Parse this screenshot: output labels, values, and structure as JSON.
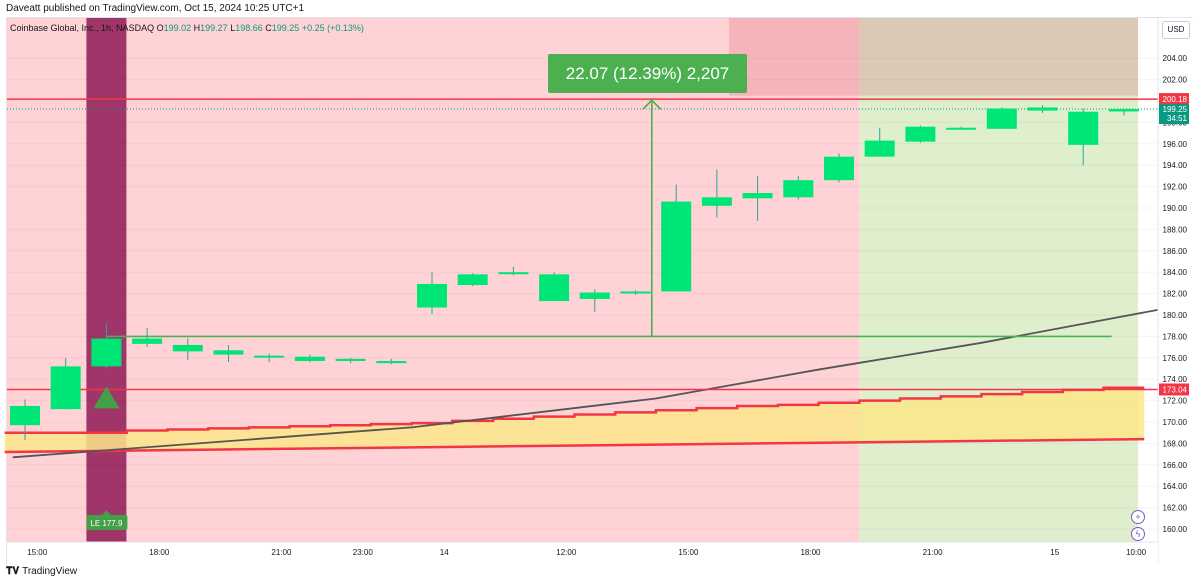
{
  "header": {
    "published_text": "Daveatt published on TradingView.com, Oct 15, 2024 10:25 UTC+1"
  },
  "legend": {
    "symbol_text": "Coinbase Global, Inc., 1h, NASDAQ",
    "open_label": "O",
    "open_value": "199.02",
    "high_label": "H",
    "high_value": "199.27",
    "low_label": "L",
    "low_value": "198.66",
    "close_label": "C",
    "close_value": "199.25",
    "change_value": "+0.25 (+0.13%)"
  },
  "currency_button": "USD",
  "measure_label": "22.07 (12.39%) 2,207",
  "footer": {
    "brand": "TradingView"
  },
  "icons": [
    "tradingview-logo-icon",
    "plus-icon",
    "lightning-icon"
  ],
  "colors": {
    "bull_candle": "#00e676",
    "red_zone": "#ffcdd2",
    "green_zone": "#dcedc8",
    "band_fill": "#fde68a",
    "band_line": "#f23645",
    "measure": "#4caf50",
    "ma_line": "#555555",
    "purple_bar": "#880e4f"
  },
  "chart_data": {
    "type": "candlestick",
    "title": "Coinbase Global, Inc., 1h, NASDAQ",
    "ylim": [
      159,
      206
    ],
    "y_ticks": [
      160,
      162,
      164,
      166,
      168,
      170,
      172,
      174,
      176,
      178,
      180,
      182,
      184,
      186,
      188,
      190,
      192,
      194,
      196,
      198,
      200,
      202,
      204
    ],
    "y_tick_labels": [
      "160.00",
      "162.00",
      "164.00",
      "166.00",
      "168.00",
      "170.00",
      "172.00",
      "174.00",
      "176.00",
      "178.00",
      "180.00",
      "182.00",
      "184.00",
      "186.00",
      "188.00",
      "190.00",
      "192.00",
      "194.00",
      "196.00",
      "198.00",
      "200.00",
      "202.00",
      "204.00"
    ],
    "x_labels": [
      {
        "bar": 0.3,
        "label": "15:00"
      },
      {
        "bar": 3.3,
        "label": "18:00"
      },
      {
        "bar": 6.3,
        "label": "21:00"
      },
      {
        "bar": 8.3,
        "label": "23:00"
      },
      {
        "bar": 10.3,
        "label": "14"
      },
      {
        "bar": 13.3,
        "label": "12:00"
      },
      {
        "bar": 16.3,
        "label": "15:00"
      },
      {
        "bar": 19.3,
        "label": "18:00"
      },
      {
        "bar": 22.3,
        "label": "21:00"
      },
      {
        "bar": 25.3,
        "label": "15"
      },
      {
        "bar": 27.3,
        "label": "10:00"
      }
    ],
    "candles": [
      {
        "o": 169.7,
        "h": 172.1,
        "l": 168.3,
        "c": 171.5
      },
      {
        "o": 171.2,
        "h": 176.0,
        "l": 171.2,
        "c": 175.2
      },
      {
        "o": 175.2,
        "h": 179.2,
        "l": 175.0,
        "c": 177.8
      },
      {
        "o": 177.3,
        "h": 178.8,
        "l": 177.0,
        "c": 177.8
      },
      {
        "o": 177.2,
        "h": 177.8,
        "l": 175.8,
        "c": 176.6
      },
      {
        "o": 176.7,
        "h": 177.2,
        "l": 175.6,
        "c": 176.3
      },
      {
        "o": 176.2,
        "h": 176.4,
        "l": 175.6,
        "c": 176.2
      },
      {
        "o": 175.7,
        "h": 176.3,
        "l": 175.6,
        "c": 176.1
      },
      {
        "o": 175.7,
        "h": 176.0,
        "l": 175.5,
        "c": 175.9
      },
      {
        "o": 175.5,
        "h": 175.9,
        "l": 175.4,
        "c": 175.7
      },
      {
        "o": 180.7,
        "h": 184.0,
        "l": 180.1,
        "c": 182.9
      },
      {
        "o": 182.8,
        "h": 183.9,
        "l": 182.7,
        "c": 183.8
      },
      {
        "o": 183.9,
        "h": 184.5,
        "l": 183.7,
        "c": 184.0
      },
      {
        "o": 181.3,
        "h": 184.0,
        "l": 181.3,
        "c": 183.8
      },
      {
        "o": 181.5,
        "h": 182.4,
        "l": 180.3,
        "c": 182.1
      },
      {
        "o": 182.1,
        "h": 182.3,
        "l": 181.9,
        "c": 182.2
      },
      {
        "o": 182.2,
        "h": 192.2,
        "l": 182.2,
        "c": 190.6
      },
      {
        "o": 190.2,
        "h": 193.6,
        "l": 189.1,
        "c": 191.0
      },
      {
        "o": 190.9,
        "h": 193.0,
        "l": 188.8,
        "c": 191.4
      },
      {
        "o": 191.0,
        "h": 193.0,
        "l": 190.8,
        "c": 192.6
      },
      {
        "o": 192.6,
        "h": 195.1,
        "l": 192.4,
        "c": 194.8
      },
      {
        "o": 194.8,
        "h": 197.5,
        "l": 194.8,
        "c": 196.3
      },
      {
        "o": 196.2,
        "h": 197.7,
        "l": 196.1,
        "c": 197.6
      },
      {
        "o": 197.4,
        "h": 197.6,
        "l": 197.3,
        "c": 197.5
      },
      {
        "o": 197.4,
        "h": 199.4,
        "l": 197.4,
        "c": 199.3
      },
      {
        "o": 199.1,
        "h": 199.6,
        "l": 198.9,
        "c": 199.4
      },
      {
        "o": 195.9,
        "h": 199.3,
        "l": 194.0,
        "c": 199.0
      },
      {
        "o": 199.02,
        "h": 199.27,
        "l": 198.66,
        "c": 199.25
      }
    ],
    "moving_average": [
      {
        "bar": -0.3,
        "v": 166.7
      },
      {
        "bar": 9.5,
        "v": 169.5
      },
      {
        "bar": 15.5,
        "v": 172.2
      },
      {
        "bar": 19.5,
        "v": 174.9
      },
      {
        "bar": 23.5,
        "v": 177.4
      },
      {
        "bar": 28.0,
        "v": 180.6
      }
    ],
    "band_upper": [
      169.0,
      169.0,
      169.0,
      169.2,
      169.3,
      169.4,
      169.5,
      169.6,
      169.7,
      169.8,
      169.9,
      170.1,
      170.3,
      170.5,
      170.7,
      170.9,
      171.1,
      171.3,
      171.5,
      171.6,
      171.8,
      172.0,
      172.2,
      172.4,
      172.6,
      172.8,
      173.0,
      173.2
    ],
    "band_lower": [
      167.2,
      168.4
    ],
    "horizontal_lines": [
      {
        "v": 200.18,
        "label": "200.18",
        "color": "#f23645"
      },
      {
        "v": 173.04,
        "label": "173.04",
        "color": "#f23645"
      },
      {
        "v": 178.0,
        "label": "",
        "color": "#4caf50"
      }
    ],
    "last_price": {
      "v": 199.25,
      "label": "199.25",
      "countdown": "34:51"
    },
    "measure": {
      "bar": 15.4,
      "from": 178.0,
      "to": 200.07,
      "change": "22.07",
      "percent": "12.39%",
      "ticks": "2,207"
    },
    "entry_signal": {
      "bar": 2,
      "label": "LE 177.9",
      "marker_price": 172.3
    },
    "zones": [
      {
        "from_bar": -0.5,
        "to_bar": 20.5,
        "color": "red"
      },
      {
        "from_bar": 20.5,
        "to_bar": 27.5,
        "color": "green"
      },
      {
        "from_bar": 17.3,
        "to_bar": 20.5,
        "y_from": 200.5,
        "y_to": 208,
        "color": "dark-red"
      },
      {
        "from_bar": 20.5,
        "to_bar": 27.5,
        "y_from": 200.5,
        "y_to": 208,
        "color": "brown"
      }
    ],
    "highlight_bar": 2
  }
}
